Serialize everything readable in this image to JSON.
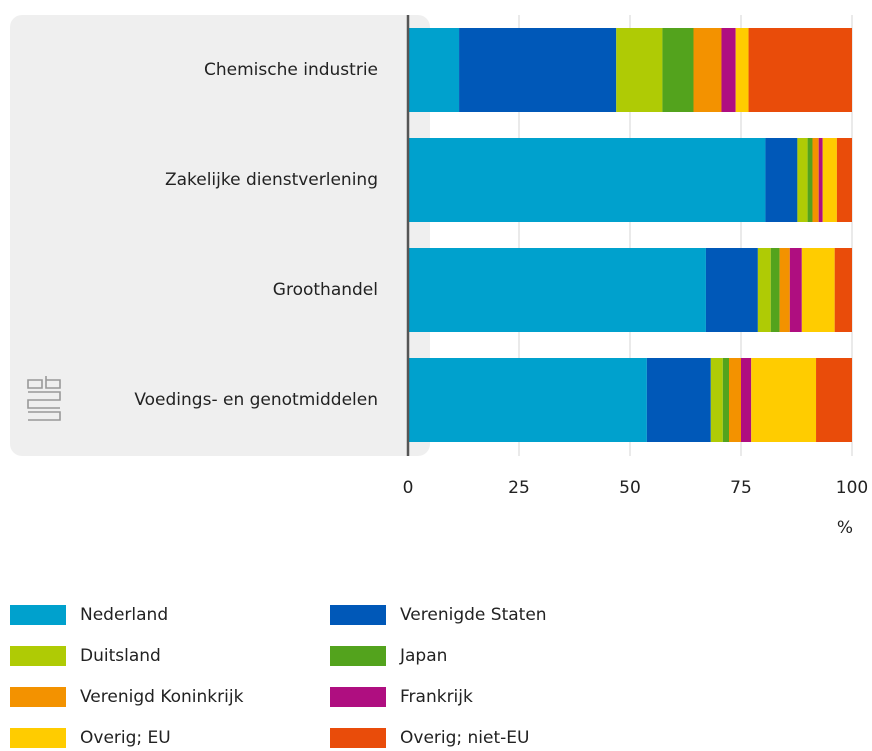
{
  "chart_data": {
    "type": "stacked-barh",
    "categories": [
      "Chemische industrie",
      "Zakelijke dienstverlening",
      "Groothandel",
      "Voedings- en genotmiddelen"
    ],
    "series": [
      {
        "name": "Nederland",
        "color": "#00a1cd",
        "values": [
          11.5,
          80.5,
          67.1,
          53.8
        ]
      },
      {
        "name": "Verenigde Staten",
        "color": "#0058b8",
        "values": [
          35.4,
          7.2,
          11.7,
          14.4
        ]
      },
      {
        "name": "Duitsland",
        "color": "#afcb05",
        "values": [
          10.4,
          2.3,
          2.9,
          2.7
        ]
      },
      {
        "name": "Japan",
        "color": "#53a31d",
        "values": [
          7.0,
          1.1,
          2.0,
          1.4
        ]
      },
      {
        "name": "Verenigd Koninkrijk",
        "color": "#f39200",
        "values": [
          6.3,
          1.4,
          2.3,
          2.7
        ]
      },
      {
        "name": "Frankrijk",
        "color": "#af0e80",
        "values": [
          3.2,
          0.9,
          2.7,
          2.3
        ]
      },
      {
        "name": "Overig; EU",
        "color": "#ffcc00",
        "values": [
          2.9,
          3.2,
          7.4,
          14.6
        ]
      },
      {
        "name": "Overig; niet-EU",
        "color": "#e94c0a",
        "values": [
          23.3,
          3.4,
          3.9,
          8.1
        ]
      }
    ],
    "xlabel": "%",
    "xlim": [
      0,
      100
    ],
    "xticks": [
      0,
      25,
      50,
      75,
      100
    ],
    "grid": true
  }
}
